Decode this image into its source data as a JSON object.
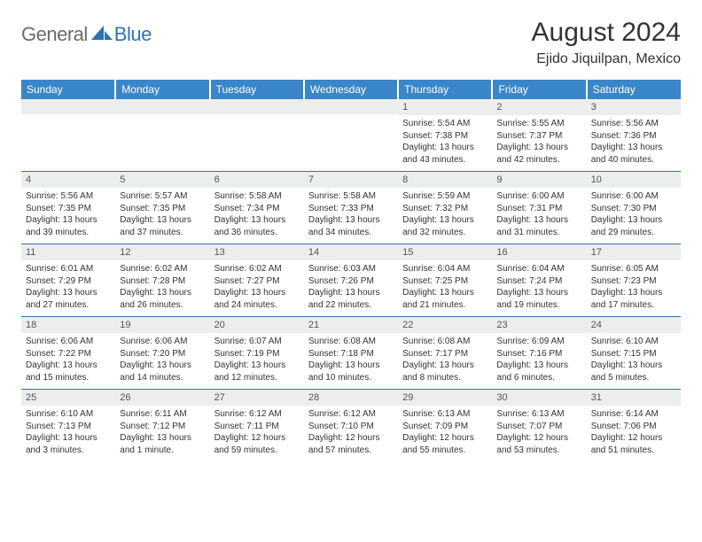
{
  "logo": {
    "part1": "General",
    "part2": "Blue"
  },
  "header": {
    "month": "August 2024",
    "location": "Ejido Jiquilpan, Mexico"
  },
  "colors": {
    "header_bg": "#3a86c8",
    "header_fg": "#ffffff",
    "daynum_bg": "#eceeee",
    "rule": "#3a6ea5",
    "logo_gray": "#6b6b6b",
    "logo_blue": "#2d73b5"
  },
  "weekdays": [
    "Sunday",
    "Monday",
    "Tuesday",
    "Wednesday",
    "Thursday",
    "Friday",
    "Saturday"
  ],
  "weeks": [
    [
      {
        "n": "",
        "lines": []
      },
      {
        "n": "",
        "lines": []
      },
      {
        "n": "",
        "lines": []
      },
      {
        "n": "",
        "lines": []
      },
      {
        "n": "1",
        "lines": [
          "Sunrise: 5:54 AM",
          "Sunset: 7:38 PM",
          "Daylight: 13 hours and 43 minutes."
        ]
      },
      {
        "n": "2",
        "lines": [
          "Sunrise: 5:55 AM",
          "Sunset: 7:37 PM",
          "Daylight: 13 hours and 42 minutes."
        ]
      },
      {
        "n": "3",
        "lines": [
          "Sunrise: 5:56 AM",
          "Sunset: 7:36 PM",
          "Daylight: 13 hours and 40 minutes."
        ]
      }
    ],
    [
      {
        "n": "4",
        "lines": [
          "Sunrise: 5:56 AM",
          "Sunset: 7:35 PM",
          "Daylight: 13 hours and 39 minutes."
        ]
      },
      {
        "n": "5",
        "lines": [
          "Sunrise: 5:57 AM",
          "Sunset: 7:35 PM",
          "Daylight: 13 hours and 37 minutes."
        ]
      },
      {
        "n": "6",
        "lines": [
          "Sunrise: 5:58 AM",
          "Sunset: 7:34 PM",
          "Daylight: 13 hours and 36 minutes."
        ]
      },
      {
        "n": "7",
        "lines": [
          "Sunrise: 5:58 AM",
          "Sunset: 7:33 PM",
          "Daylight: 13 hours and 34 minutes."
        ]
      },
      {
        "n": "8",
        "lines": [
          "Sunrise: 5:59 AM",
          "Sunset: 7:32 PM",
          "Daylight: 13 hours and 32 minutes."
        ]
      },
      {
        "n": "9",
        "lines": [
          "Sunrise: 6:00 AM",
          "Sunset: 7:31 PM",
          "Daylight: 13 hours and 31 minutes."
        ]
      },
      {
        "n": "10",
        "lines": [
          "Sunrise: 6:00 AM",
          "Sunset: 7:30 PM",
          "Daylight: 13 hours and 29 minutes."
        ]
      }
    ],
    [
      {
        "n": "11",
        "lines": [
          "Sunrise: 6:01 AM",
          "Sunset: 7:29 PM",
          "Daylight: 13 hours and 27 minutes."
        ]
      },
      {
        "n": "12",
        "lines": [
          "Sunrise: 6:02 AM",
          "Sunset: 7:28 PM",
          "Daylight: 13 hours and 26 minutes."
        ]
      },
      {
        "n": "13",
        "lines": [
          "Sunrise: 6:02 AM",
          "Sunset: 7:27 PM",
          "Daylight: 13 hours and 24 minutes."
        ]
      },
      {
        "n": "14",
        "lines": [
          "Sunrise: 6:03 AM",
          "Sunset: 7:26 PM",
          "Daylight: 13 hours and 22 minutes."
        ]
      },
      {
        "n": "15",
        "lines": [
          "Sunrise: 6:04 AM",
          "Sunset: 7:25 PM",
          "Daylight: 13 hours and 21 minutes."
        ]
      },
      {
        "n": "16",
        "lines": [
          "Sunrise: 6:04 AM",
          "Sunset: 7:24 PM",
          "Daylight: 13 hours and 19 minutes."
        ]
      },
      {
        "n": "17",
        "lines": [
          "Sunrise: 6:05 AM",
          "Sunset: 7:23 PM",
          "Daylight: 13 hours and 17 minutes."
        ]
      }
    ],
    [
      {
        "n": "18",
        "lines": [
          "Sunrise: 6:06 AM",
          "Sunset: 7:22 PM",
          "Daylight: 13 hours and 15 minutes."
        ]
      },
      {
        "n": "19",
        "lines": [
          "Sunrise: 6:06 AM",
          "Sunset: 7:20 PM",
          "Daylight: 13 hours and 14 minutes."
        ]
      },
      {
        "n": "20",
        "lines": [
          "Sunrise: 6:07 AM",
          "Sunset: 7:19 PM",
          "Daylight: 13 hours and 12 minutes."
        ]
      },
      {
        "n": "21",
        "lines": [
          "Sunrise: 6:08 AM",
          "Sunset: 7:18 PM",
          "Daylight: 13 hours and 10 minutes."
        ]
      },
      {
        "n": "22",
        "lines": [
          "Sunrise: 6:08 AM",
          "Sunset: 7:17 PM",
          "Daylight: 13 hours and 8 minutes."
        ]
      },
      {
        "n": "23",
        "lines": [
          "Sunrise: 6:09 AM",
          "Sunset: 7:16 PM",
          "Daylight: 13 hours and 6 minutes."
        ]
      },
      {
        "n": "24",
        "lines": [
          "Sunrise: 6:10 AM",
          "Sunset: 7:15 PM",
          "Daylight: 13 hours and 5 minutes."
        ]
      }
    ],
    [
      {
        "n": "25",
        "lines": [
          "Sunrise: 6:10 AM",
          "Sunset: 7:13 PM",
          "Daylight: 13 hours and 3 minutes."
        ]
      },
      {
        "n": "26",
        "lines": [
          "Sunrise: 6:11 AM",
          "Sunset: 7:12 PM",
          "Daylight: 13 hours and 1 minute."
        ]
      },
      {
        "n": "27",
        "lines": [
          "Sunrise: 6:12 AM",
          "Sunset: 7:11 PM",
          "Daylight: 12 hours and 59 minutes."
        ]
      },
      {
        "n": "28",
        "lines": [
          "Sunrise: 6:12 AM",
          "Sunset: 7:10 PM",
          "Daylight: 12 hours and 57 minutes."
        ]
      },
      {
        "n": "29",
        "lines": [
          "Sunrise: 6:13 AM",
          "Sunset: 7:09 PM",
          "Daylight: 12 hours and 55 minutes."
        ]
      },
      {
        "n": "30",
        "lines": [
          "Sunrise: 6:13 AM",
          "Sunset: 7:07 PM",
          "Daylight: 12 hours and 53 minutes."
        ]
      },
      {
        "n": "31",
        "lines": [
          "Sunrise: 6:14 AM",
          "Sunset: 7:06 PM",
          "Daylight: 12 hours and 51 minutes."
        ]
      }
    ]
  ]
}
